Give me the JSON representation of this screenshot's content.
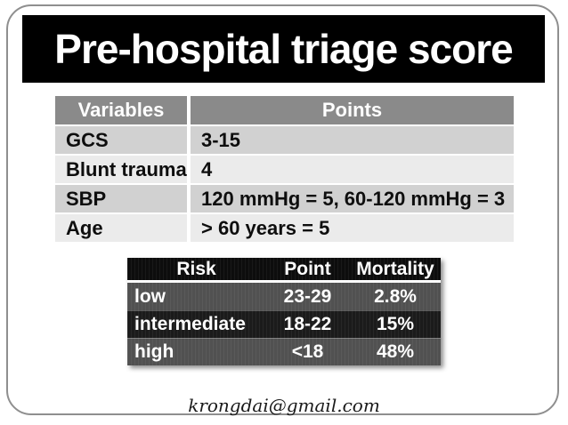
{
  "slide": {
    "title": "Pre-hospital triage score",
    "footer_email": "krongdai@gmail.com"
  },
  "variables_table": {
    "headers": [
      "Variables",
      "Points"
    ],
    "rows": [
      {
        "variable": "GCS",
        "points": "3-15"
      },
      {
        "variable": "Blunt trauma",
        "points": "4"
      },
      {
        "variable": "SBP",
        "points": "120 mmHg = 5, 60-120 mmHg = 3"
      },
      {
        "variable": "Age",
        "points": "> 60 years = 5"
      }
    ]
  },
  "risk_table": {
    "headers": [
      "Risk",
      "Point",
      "Mortality"
    ],
    "rows": [
      {
        "risk": "low",
        "point": "23-29",
        "mortality": "2.8%"
      },
      {
        "risk": "intermediate",
        "point": "18-22",
        "mortality": "15%"
      },
      {
        "risk": "high",
        "point": "<18",
        "mortality": "48%"
      }
    ]
  },
  "colors": {
    "title_bar_bg": "#000000",
    "title_text": "#ffffff",
    "variables_header_bg": "#8a8a8a",
    "variables_row_dark": "#d1d1d1",
    "variables_row_light": "#ebebeb",
    "risk_header_bg": "#0d0d0d",
    "risk_row_dark": "#1b1b1b",
    "risk_row_gray": "#515151",
    "slide_border": "#8f8f8f"
  }
}
